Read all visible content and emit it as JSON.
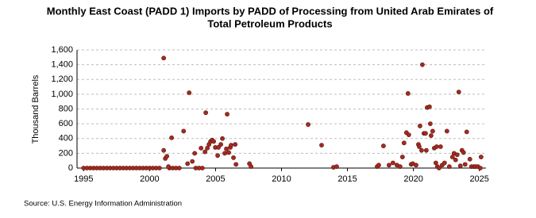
{
  "chart_data": {
    "type": "scatter",
    "title": [
      "Monthly East Coast (PADD 1) Imports by PADD of Processing from United Arab Emirates of",
      "Total Petroleum Products"
    ],
    "y_label": "Thousand Barrels",
    "source": "Source: U.S. Energy Information Administration",
    "color": "#a52a1f",
    "grid": true,
    "xlim": [
      1994.5,
      2025.5
    ],
    "xticks": [
      1995,
      2000,
      2005,
      2010,
      2015,
      2020,
      2025
    ],
    "ylim": [
      0,
      1600
    ],
    "yticks": [
      0,
      200,
      400,
      600,
      800,
      {
        "value": 1000,
        "label": "1,000"
      },
      {
        "value": 1200,
        "label": "1,200"
      },
      {
        "value": 1400,
        "label": "1,400"
      },
      {
        "value": 1600,
        "label": "1,600"
      }
    ],
    "x": [
      1995.0,
      1995.25,
      1995.5,
      1995.75,
      1996.0,
      1996.25,
      1996.5,
      1996.75,
      1997.0,
      1997.25,
      1997.5,
      1997.75,
      1998.0,
      1998.25,
      1998.5,
      1998.75,
      1999.0,
      1999.25,
      1999.5,
      1999.75,
      2000.0,
      2000.25,
      2000.5,
      2000.75,
      2001.5,
      2001.75,
      2002.0,
      2002.25,
      2003.5,
      2003.75,
      2004.0,
      2001.07,
      2001.07,
      2001.19,
      2001.31,
      2001.43,
      2001.67,
      2002.58,
      2002.88,
      2003.0,
      2003.24,
      2003.42,
      2003.9,
      2004.2,
      2004.26,
      2004.38,
      2004.5,
      2004.62,
      2004.74,
      2004.86,
      2004.98,
      2005.16,
      2005.22,
      2005.4,
      2005.52,
      2005.7,
      2005.82,
      2005.88,
      2006.0,
      2006.12,
      2006.18,
      2006.36,
      2006.49,
      2006.55,
      2007.57,
      2007.69,
      2012.02,
      2013.04,
      2013.94,
      2014.18,
      2017.25,
      2017.37,
      2017.73,
      2018.15,
      2018.45,
      2018.75,
      2018.99,
      2019.17,
      2019.29,
      2019.47,
      2019.59,
      2019.65,
      2019.83,
      2019.95,
      2020.2,
      2020.38,
      2020.44,
      2020.5,
      2020.62,
      2020.68,
      2020.8,
      2020.92,
      2020.98,
      2021.04,
      2021.22,
      2021.28,
      2021.34,
      2021.46,
      2021.58,
      2021.7,
      2021.76,
      2021.82,
      2021.94,
      2022.06,
      2022.18,
      2022.36,
      2022.54,
      2022.72,
      2022.96,
      2023.08,
      2023.2,
      2023.32,
      2023.44,
      2023.56,
      2023.68,
      2023.8,
      2023.92,
      2024.04,
      2024.28,
      2024.4,
      2024.59,
      2024.71,
      2024.89,
      2025.07,
      2025.13
    ],
    "values": [
      0,
      0,
      0,
      0,
      0,
      0,
      0,
      0,
      0,
      0,
      0,
      0,
      0,
      0,
      0,
      0,
      0,
      0,
      0,
      0,
      0,
      0,
      0,
      0,
      0,
      0,
      0,
      0,
      0,
      0,
      0,
      1490,
      240,
      130,
      160,
      20,
      410,
      500,
      60,
      1020,
      90,
      200,
      270,
      220,
      750,
      270,
      320,
      360,
      380,
      360,
      280,
      170,
      280,
      320,
      400,
      200,
      260,
      730,
      210,
      280,
      310,
      140,
      320,
      50,
      60,
      20,
      590,
      310,
      10,
      20,
      20,
      40,
      300,
      40,
      70,
      40,
      20,
      150,
      340,
      480,
      1010,
      450,
      50,
      60,
      40,
      320,
      290,
      570,
      240,
      1400,
      470,
      470,
      240,
      820,
      830,
      600,
      440,
      500,
      270,
      70,
      290,
      20,
      0,
      290,
      40,
      70,
      500,
      20,
      150,
      200,
      110,
      180,
      1030,
      30,
      240,
      210,
      50,
      490,
      120,
      20,
      20,
      20,
      20,
      0,
      150
    ]
  }
}
